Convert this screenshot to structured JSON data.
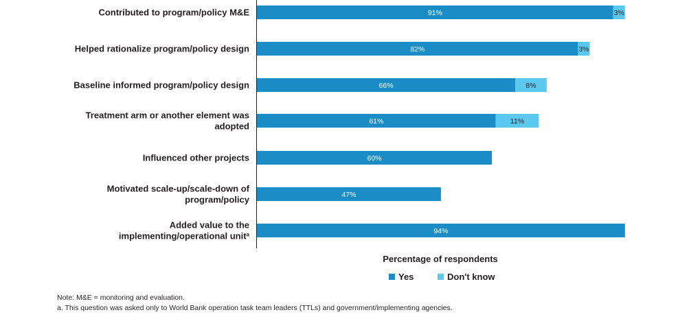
{
  "chart_data": {
    "type": "bar",
    "orientation": "horizontal",
    "stacked": true,
    "categories": [
      [
        "Contributed to program/policy M&E"
      ],
      [
        "Helped rationalize program/policy design"
      ],
      [
        "Baseline informed program/policy design"
      ],
      [
        "Treatment arm or another element was",
        "adopted"
      ],
      [
        "Influenced other projects"
      ],
      [
        "Motivated scale-up/scale-down of",
        "program/policy"
      ],
      [
        "Added value to the",
        "implementing/operational unit"
      ]
    ],
    "category_superscripts": [
      "",
      "",
      "",
      "",
      "",
      "",
      "a"
    ],
    "series": [
      {
        "name": "Yes",
        "color": "#1b8dc6",
        "values": [
          91,
          82,
          66,
          61,
          60,
          47,
          94
        ],
        "labels": [
          "91%",
          "82%",
          "66%",
          "61%",
          "60%",
          "47%",
          "94%"
        ]
      },
      {
        "name": "Don't know",
        "color": "#5bc8f0",
        "values": [
          3,
          3,
          8,
          11,
          null,
          null,
          null
        ],
        "labels": [
          "3%",
          "3%",
          "8%",
          "11%",
          null,
          null,
          null
        ]
      }
    ],
    "xlabel": "Percentage of respondents",
    "xlim": [
      0,
      100
    ],
    "grid": false,
    "legend": "bottom"
  },
  "notes": {
    "line1": "Note: M&E = monitoring and evaluation.",
    "line2": "a. This question was asked only to World Bank operation task team leaders (TTLs) and government/implementing agencies."
  }
}
